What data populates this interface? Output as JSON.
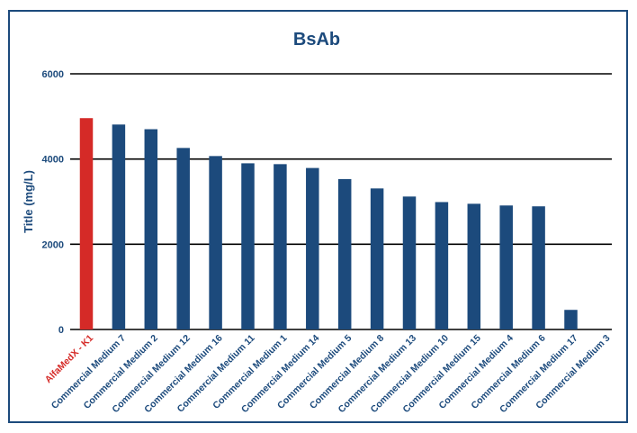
{
  "colors": {
    "primary": "#1c4a7c",
    "highlight": "#d52a27",
    "grid": "#000000"
  },
  "chart_data": {
    "type": "bar",
    "title": "BsAb",
    "xlabel": "",
    "ylabel": "Title (mg/L)",
    "ylim": [
      0,
      6000
    ],
    "yticks": [
      0,
      2000,
      4000,
      6000
    ],
    "grid": true,
    "categories": [
      "AlfaMedX - K1",
      "Commercial Medium 7",
      "Commercial Medium 2",
      "Commercial Medium 12",
      "Commercial Medium 16",
      "Commercial Medium 11",
      "Commercial Medium 1",
      "Commercial Medium 14",
      "Commercial Medium 5",
      "Commercial Medium 8",
      "Commercial Medium 13",
      "Commercial Medium 10",
      "Commercial Medium 15",
      "Commercial Medium 4",
      "Commercial Medium 6",
      "Commercial Medium 17",
      "Commercial Medium 3"
    ],
    "values": [
      4960,
      4810,
      4700,
      4260,
      4070,
      3900,
      3880,
      3790,
      3530,
      3310,
      3120,
      2990,
      2950,
      2910,
      2890,
      460,
      0
    ],
    "highlight_index": 0
  }
}
